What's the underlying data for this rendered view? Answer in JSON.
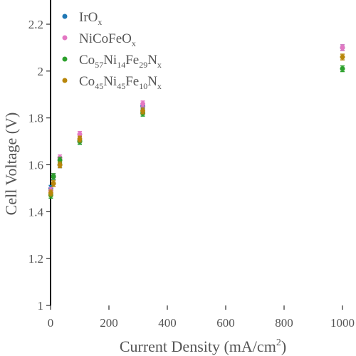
{
  "chart_data": {
    "type": "scatter",
    "title": "",
    "xlabel_main": "Current Density (mA/cm",
    "xlabel_sup": "2",
    "xlabel_tail": ")",
    "ylabel": "Cell Voltage (V)",
    "xlim": [
      0,
      1000
    ],
    "ylim": [
      1.0,
      2.2
    ],
    "xticks": [
      "0",
      "200",
      "400",
      "600",
      "800",
      "1000"
    ],
    "yticks": [
      "1",
      "1.2",
      "1.4",
      "1.6",
      "1.8",
      "2",
      "2.2"
    ],
    "grid": false,
    "legend_position": "top-left",
    "series": [
      {
        "name": "IrOx",
        "legend_parts": [
          [
            "IrO",
            ""
          ],
          [
            "x",
            "sub"
          ]
        ],
        "color": "#1f77b4",
        "x": [
          1,
          10,
          32,
          100,
          316,
          1000
        ],
        "y": [
          1.5,
          1.55,
          1.6,
          1.7,
          1.85,
          2.1
        ]
      },
      {
        "name": "NiCoFeOx",
        "legend_parts": [
          [
            "NiCoFeO",
            ""
          ],
          [
            "x",
            "sub"
          ]
        ],
        "color": "#e377c2",
        "x": [
          1,
          10,
          32,
          100,
          316,
          1000
        ],
        "y": [
          1.49,
          1.55,
          1.63,
          1.73,
          1.86,
          2.1
        ]
      },
      {
        "name": "Co57Ni14Fe29Nx",
        "legend_parts": [
          [
            "Co",
            ""
          ],
          [
            "57",
            "sub"
          ],
          [
            "Ni",
            ""
          ],
          [
            "14",
            "sub"
          ],
          [
            "Fe",
            ""
          ],
          [
            "29",
            "sub"
          ],
          [
            "N",
            ""
          ],
          [
            "x",
            "sub"
          ]
        ],
        "color": "#2ca02c",
        "x": [
          1,
          10,
          32,
          100,
          316,
          1000
        ],
        "y": [
          1.47,
          1.55,
          1.62,
          1.7,
          1.82,
          2.01
        ]
      },
      {
        "name": "Co45Ni45Fe10Nx",
        "legend_parts": [
          [
            "Co",
            ""
          ],
          [
            "45",
            "sub"
          ],
          [
            "Ni",
            ""
          ],
          [
            "45",
            "sub"
          ],
          [
            "Fe",
            ""
          ],
          [
            "10",
            "sub"
          ],
          [
            "N",
            ""
          ],
          [
            "x",
            "sub"
          ]
        ],
        "color": "#b8860b",
        "x": [
          1,
          10,
          32,
          100,
          316,
          1000
        ],
        "y": [
          1.48,
          1.52,
          1.6,
          1.71,
          1.83,
          2.06
        ]
      }
    ]
  }
}
